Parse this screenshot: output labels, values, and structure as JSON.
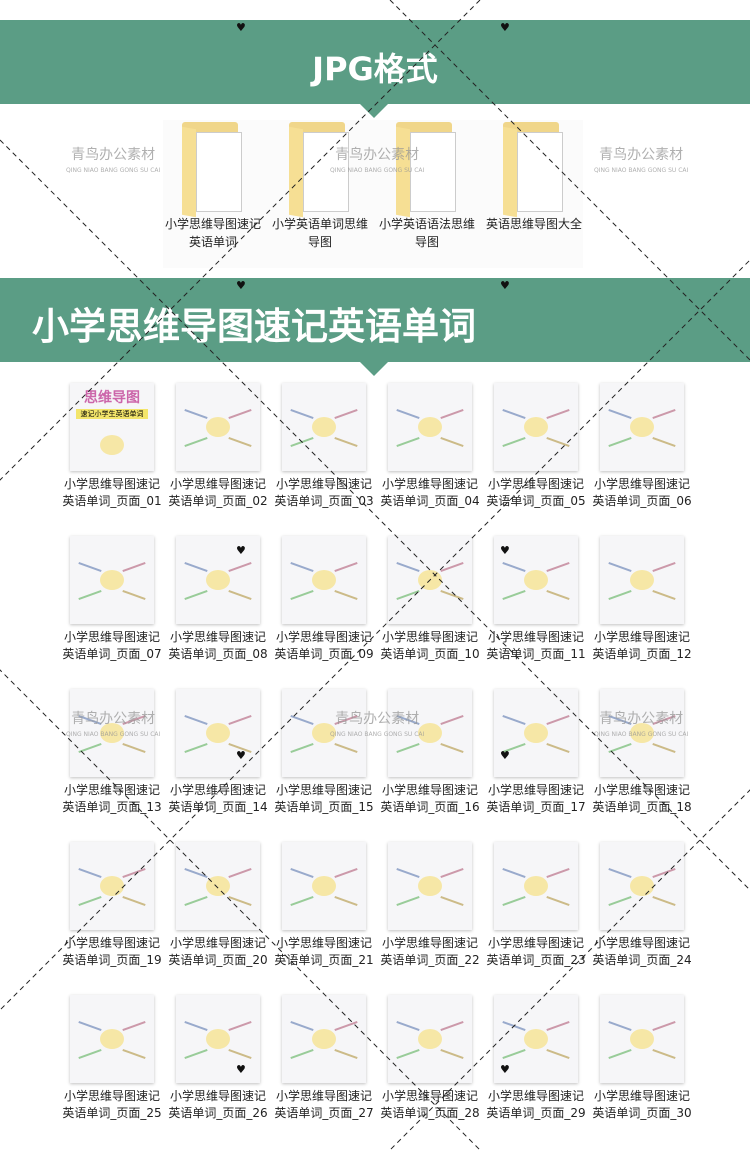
{
  "banners": {
    "jpg_title": "JPG格式",
    "section_title": "小学思维导图速记英语单词"
  },
  "folders": [
    {
      "label": "小学思维导图速记英语单词"
    },
    {
      "label": "小学英语单词思维导图"
    },
    {
      "label": "小学英语语法思维导图"
    },
    {
      "label": "英语思维导图大全"
    }
  ],
  "watermark": {
    "text": "青鸟办公素材",
    "pinyin": "QING NIAO BANG GONG SU CAI"
  },
  "cover_thumb_text": {
    "title": "思维导图",
    "subtitle": "速记小学生英语单词"
  },
  "colors": {
    "banner": "#5b9d85",
    "folder": "#f0d68a"
  },
  "items": [
    "小学思维导图速记英语单词_页面_01",
    "小学思维导图速记英语单词_页面_02",
    "小学思维导图速记英语单词_页面_03",
    "小学思维导图速记英语单词_页面_04",
    "小学思维导图速记英语单词_页面_05",
    "小学思维导图速记英语单词_页面_06",
    "小学思维导图速记英语单词_页面_07",
    "小学思维导图速记英语单词_页面_08",
    "小学思维导图速记英语单词_页面_09",
    "小学思维导图速记英语单词_页面_10",
    "小学思维导图速记英语单词_页面_11",
    "小学思维导图速记英语单词_页面_12",
    "小学思维导图速记英语单词_页面_13",
    "小学思维导图速记英语单词_页面_14",
    "小学思维导图速记英语单词_页面_15",
    "小学思维导图速记英语单词_页面_16",
    "小学思维导图速记英语单词_页面_17",
    "小学思维导图速记英语单词_页面_18",
    "小学思维导图速记英语单词_页面_19",
    "小学思维导图速记英语单词_页面_20",
    "小学思维导图速记英语单词_页面_21",
    "小学思维导图速记英语单词_页面_22",
    "小学思维导图速记英语单词_页面_23",
    "小学思维导图速记英语单词_页面_24",
    "小学思维导图速记英语单词_页面_25",
    "小学思维导图速记英语单词_页面_26",
    "小学思维导图速记英语单词_页面_27",
    "小学思维导图速记英语单词_页面_28",
    "小学思维导图速记英语单词_页面_29",
    "小学思维导图速记英语单词_页面_30"
  ]
}
